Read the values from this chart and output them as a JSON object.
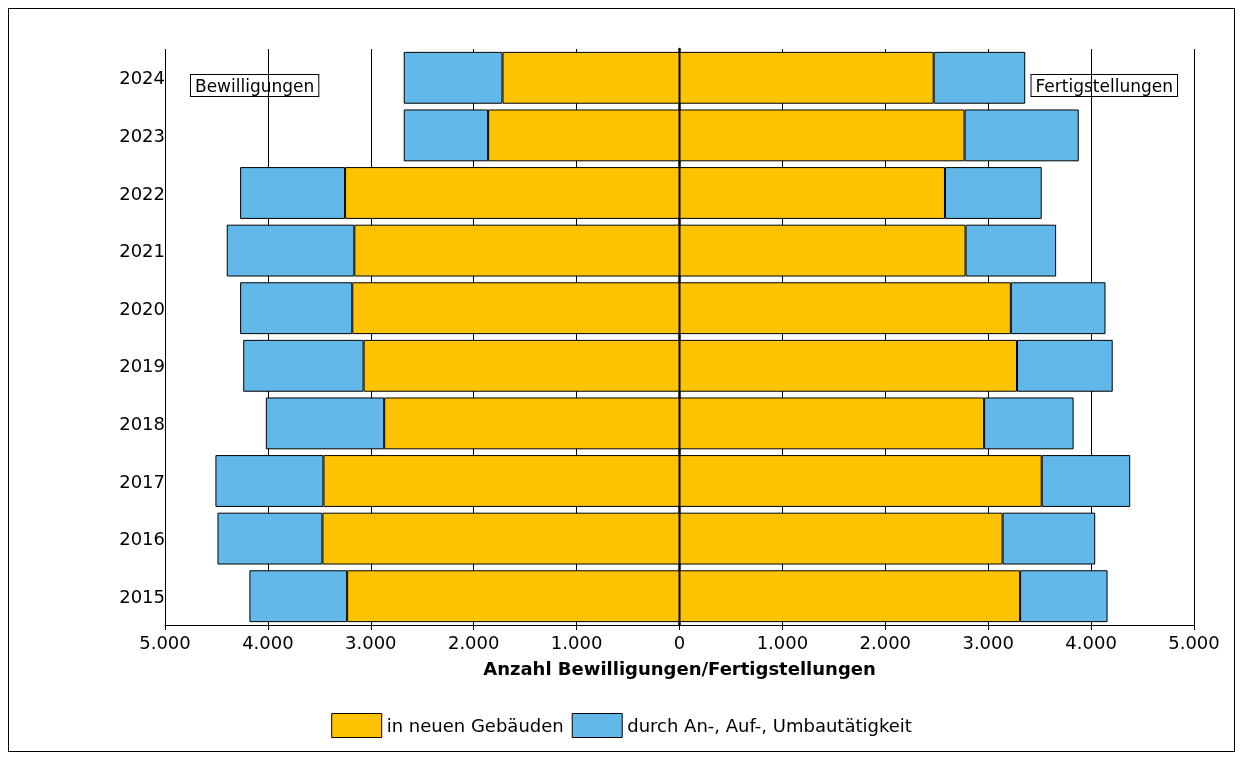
{
  "chart_data": {
    "type": "bar",
    "orientation": "horizontal",
    "stacked": true,
    "xlabel": "Anzahl Bewilligungen/Fertigstellungen",
    "categories": [
      "2024",
      "2023",
      "2022",
      "2021",
      "2020",
      "2019",
      "2018",
      "2017",
      "2016",
      "2015"
    ],
    "series": [
      {
        "color": "#fdc300",
        "values": [
          -1720,
          -1860,
          -3250,
          -3160,
          -3180,
          -3070,
          -2870,
          -3460,
          -3470,
          -3230
        ]
      },
      {
        "color": "#62b8e8",
        "values": [
          -960,
          -820,
          -1020,
          -1240,
          -1090,
          -1170,
          -1150,
          -1050,
          -1020,
          -950
        ]
      },
      {
        "name": "in neuen Gebäuden",
        "color": "#fdc300",
        "values": [
          2470,
          2770,
          2580,
          2780,
          3220,
          3280,
          2960,
          3520,
          3140,
          3310
        ]
      },
      {
        "name": "durch An-, Auf-, Umbautätigkeit",
        "color": "#62b8e8",
        "values": [
          890,
          1110,
          940,
          880,
          920,
          930,
          870,
          860,
          900,
          850
        ]
      }
    ],
    "xlim": [
      -5000,
      5000
    ],
    "xticks": [
      {
        "value": -5000,
        "label": "5.000"
      },
      {
        "value": -4000,
        "label": "4.000"
      },
      {
        "value": -3000,
        "label": "3.000"
      },
      {
        "value": -2000,
        "label": "2.000"
      },
      {
        "value": -1000,
        "label": "1.000"
      },
      0,
      {
        "value": 1000,
        "label": "1.000"
      },
      {
        "value": 2000,
        "label": "2.000"
      },
      {
        "value": 3000,
        "label": "3.000"
      },
      {
        "value": 4000,
        "label": "4.000"
      },
      {
        "value": 5000,
        "label": "5.000"
      }
    ],
    "grid": "x",
    "legend": "bottom",
    "annotations": [
      "Bewilligungen",
      "Fertigstellungen"
    ]
  }
}
